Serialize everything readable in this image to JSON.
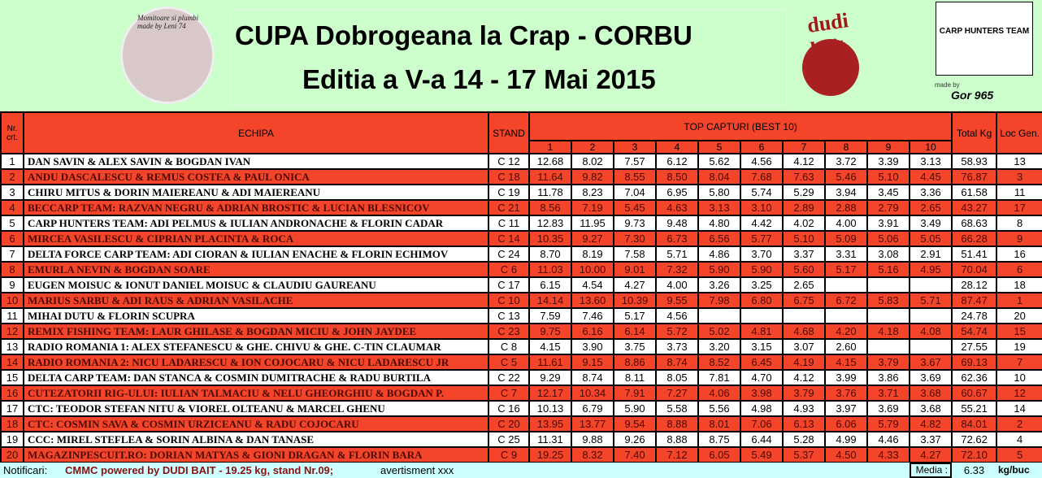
{
  "header": {
    "title": "CUPA Dobrogeana la Crap - CORBU",
    "subtitle": "Editia a V-a 14 - 17 Mai 2015",
    "logo_left_text": "Momitoare si plumbi made by Leni 74",
    "logo_dudi": "dudi bait",
    "logo_cht": "CARP HUNTERS TEAM",
    "made_by": "made by",
    "gor": "Gor 965"
  },
  "table": {
    "headers": {
      "nr": "Nr. crt.",
      "team": "ECHIPA",
      "stand": "STAND",
      "top": "TOP CAPTURI (BEST 10)",
      "total": "Total Kg",
      "loc": "Loc Gen."
    },
    "catch_cols": [
      "1",
      "2",
      "3",
      "4",
      "5",
      "6",
      "7",
      "8",
      "9",
      "10"
    ],
    "rows": [
      {
        "nr": "1",
        "team": "DAN SAVIN & ALEX SAVIN & BOGDAN IVAN",
        "stand": "C 12",
        "catches": [
          "12.68",
          "8.02",
          "7.57",
          "6.12",
          "5.62",
          "4.56",
          "4.12",
          "3.72",
          "3.39",
          "3.13"
        ],
        "total": "58.93",
        "loc": "13"
      },
      {
        "nr": "2",
        "team": "ANDU DASCALESCU & REMUS COSTEA & PAUL ONICA",
        "stand": "C 18",
        "catches": [
          "11.64",
          "9.82",
          "8.55",
          "8.50",
          "8.04",
          "7.68",
          "7.63",
          "5.46",
          "5.10",
          "4.45"
        ],
        "total": "76.87",
        "loc": "3"
      },
      {
        "nr": "3",
        "team": "CHIRU MITUS & DORIN MAIEREANU & ADI MAIEREANU",
        "stand": "C 19",
        "catches": [
          "11.78",
          "8.23",
          "7.04",
          "6.95",
          "5.80",
          "5.74",
          "5.29",
          "3.94",
          "3.45",
          "3.36"
        ],
        "total": "61.58",
        "loc": "11"
      },
      {
        "nr": "4",
        "team": "BECCARP TEAM: RAZVAN NEGRU & ADRIAN BROSTIC & LUCIAN BLESNICOV",
        "stand": "C 21",
        "catches": [
          "8.56",
          "7.19",
          "5.45",
          "4.63",
          "3.13",
          "3.10",
          "2.89",
          "2.88",
          "2.79",
          "2.65"
        ],
        "total": "43.27",
        "loc": "17"
      },
      {
        "nr": "5",
        "team": "CARP HUNTERS TEAM: ADI PELMUS & IULIAN ANDRONACHE & FLORIN CADAR",
        "stand": "C 11",
        "catches": [
          "12.83",
          "11.95",
          "9.73",
          "9.48",
          "4.80",
          "4.42",
          "4.02",
          "4.00",
          "3.91",
          "3.49"
        ],
        "total": "68.63",
        "loc": "8"
      },
      {
        "nr": "6",
        "team": "MIRCEA VASILESCU & CIPRIAN PLACINTA & ROCA",
        "stand": "C 14",
        "catches": [
          "10.35",
          "9.27",
          "7.30",
          "6.73",
          "6.56",
          "5.77",
          "5.10",
          "5.09",
          "5.06",
          "5.05"
        ],
        "total": "66.28",
        "loc": "9"
      },
      {
        "nr": "7",
        "team": "DELTA FORCE CARP TEAM: ADI CIORAN & IULIAN ENACHE & FLORIN ECHIMOV",
        "stand": "C 24",
        "catches": [
          "8.70",
          "8.19",
          "7.58",
          "5.71",
          "4.86",
          "3.70",
          "3.37",
          "3.31",
          "3.08",
          "2.91"
        ],
        "total": "51.41",
        "loc": "16"
      },
      {
        "nr": "8",
        "team": "EMURLA NEVIN & BOGDAN SOARE",
        "stand": "C 6",
        "catches": [
          "11.03",
          "10.00",
          "9.01",
          "7.32",
          "5.90",
          "5.90",
          "5.60",
          "5.17",
          "5.16",
          "4.95"
        ],
        "total": "70.04",
        "loc": "6"
      },
      {
        "nr": "9",
        "team": "EUGEN MOISUC & IONUT DANIEL MOISUC & CLAUDIU GAUREANU",
        "stand": "C 17",
        "catches": [
          "6.15",
          "4.54",
          "4.27",
          "4.00",
          "3.26",
          "3.25",
          "2.65",
          "",
          "",
          ""
        ],
        "total": "28.12",
        "loc": "18"
      },
      {
        "nr": "10",
        "team": "MARIUS SARBU & ADI RAUS & ADRIAN VASILACHE",
        "stand": "C 10",
        "catches": [
          "14.14",
          "13.60",
          "10.39",
          "9.55",
          "7.98",
          "6.80",
          "6.75",
          "6.72",
          "5.83",
          "5.71"
        ],
        "total": "87.47",
        "loc": "1"
      },
      {
        "nr": "11",
        "team": "MIHAI DUTU & FLORIN SCUPRA",
        "stand": "C 13",
        "catches": [
          "7.59",
          "7.46",
          "5.17",
          "4.56",
          "",
          "",
          "",
          "",
          "",
          ""
        ],
        "total": "24.78",
        "loc": "20"
      },
      {
        "nr": "12",
        "team": "REMIX FISHING TEAM: LAUR GHILASE & BOGDAN MICIU & JOHN JAYDEE",
        "stand": "C 23",
        "catches": [
          "9.75",
          "6.16",
          "6.14",
          "5.72",
          "5.02",
          "4.81",
          "4.68",
          "4.20",
          "4.18",
          "4.08"
        ],
        "total": "54.74",
        "loc": "15"
      },
      {
        "nr": "13",
        "team": "RADIO ROMANIA 1: ALEX STEFANESCU & GHE. CHIVU & GHE. C-TIN CLAUMAR",
        "stand": "C 8",
        "catches": [
          "4.15",
          "3.90",
          "3.75",
          "3.73",
          "3.20",
          "3.15",
          "3.07",
          "2.60",
          "",
          ""
        ],
        "total": "27.55",
        "loc": "19"
      },
      {
        "nr": "14",
        "team": "RADIO ROMANIA 2: NICU LADARESCU & ION COJOCARU & NICU LADARESCU JR",
        "stand": "C 5",
        "catches": [
          "11.61",
          "9.15",
          "8.86",
          "8.74",
          "8.52",
          "6.45",
          "4.19",
          "4.15",
          "3.79",
          "3.67"
        ],
        "total": "69.13",
        "loc": "7"
      },
      {
        "nr": "15",
        "team": "DELTA CARP TEAM: DAN STANCA & COSMIN DUMITRACHE & RADU BURTILA",
        "stand": "C 22",
        "catches": [
          "9.29",
          "8.74",
          "8.11",
          "8.05",
          "7.81",
          "4.70",
          "4.12",
          "3.99",
          "3.86",
          "3.69"
        ],
        "total": "62.36",
        "loc": "10"
      },
      {
        "nr": "16",
        "team": "CUTEZATORII RIG-ULUI: IULIAN TALMACIU & NELU GHEORGHIU & BOGDAN P.",
        "stand": "C 7",
        "catches": [
          "12.17",
          "10.34",
          "7.91",
          "7.27",
          "4.06",
          "3.98",
          "3.79",
          "3.76",
          "3.71",
          "3.68"
        ],
        "total": "60.67",
        "loc": "12"
      },
      {
        "nr": "17",
        "team": "CTC: TEODOR STEFAN NITU & VIOREL OLTEANU & MARCEL GHENU",
        "stand": "C 16",
        "catches": [
          "10.13",
          "6.79",
          "5.90",
          "5.58",
          "5.56",
          "4.98",
          "4.93",
          "3.97",
          "3.69",
          "3.68"
        ],
        "total": "55.21",
        "loc": "14"
      },
      {
        "nr": "18",
        "team": "CTC: COSMIN SAVA & COSMIN URZICEANU & RADU COJOCARU",
        "stand": "C 20",
        "catches": [
          "13.95",
          "13.77",
          "9.54",
          "8.88",
          "8.01",
          "7.06",
          "6.13",
          "6.06",
          "5.79",
          "4.82"
        ],
        "total": "84.01",
        "loc": "2"
      },
      {
        "nr": "19",
        "team": "CCC: MIREL STEFLEA & SORIN ALBINA & DAN TANASE",
        "stand": "C 25",
        "catches": [
          "11.31",
          "9.88",
          "9.26",
          "8.88",
          "8.75",
          "6.44",
          "5.28",
          "4.99",
          "4.46",
          "3.37"
        ],
        "total": "72.62",
        "loc": "4"
      },
      {
        "nr": "20",
        "team": "MAGAZINPESCUIT.RO: DORIAN MATYAS & GIONI DRAGAN & FLORIN BARA",
        "stand": "C 9",
        "catches": [
          "19.25",
          "8.32",
          "7.40",
          "7.12",
          "6.05",
          "5.49",
          "5.37",
          "4.50",
          "4.33",
          "4.27"
        ],
        "total": "72.10",
        "loc": "5"
      }
    ]
  },
  "footer": {
    "label": "Notificari:",
    "message": "CMMC powered by DUDI BAIT - 19.25 kg, stand Nr.09;",
    "warning": "avertisment xxx",
    "media_label": "Media :",
    "media_value": "6.33",
    "media_unit": "kg/buc"
  },
  "colors": {
    "red": "#f4442a",
    "header_bg": "#ccffcc",
    "footer_bg": "#ccffff"
  }
}
